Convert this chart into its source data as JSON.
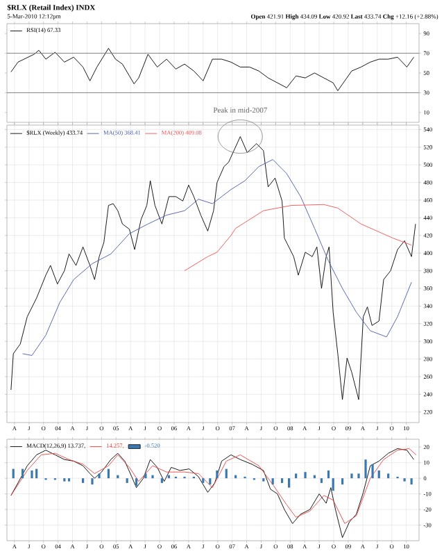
{
  "chart_data": [
    {
      "type": "line",
      "title": "$RLX (Retail Index) INDX",
      "subtitle": "5-Mar-2010 12:12pm",
      "annotations": [
        "**Open** 421.91 **High** 434.09 **Low** 420.92 **Last** 433.74 **Chg** +12.16 (+2.88%)"
      ],
      "series": [
        {
          "name": "RSI(14) 67.33",
          "color": "#000000",
          "x": [
            2003.19,
            2003.31,
            2003.59,
            2003.67,
            2003.79,
            2003.95,
            2004.11,
            2004.27,
            2004.43,
            2004.55,
            2004.67,
            2004.87,
            2004.99,
            2005.11,
            2005.23,
            2005.31,
            2005.39,
            2005.55,
            2005.71,
            2005.87,
            2006.03,
            2006.18,
            2006.34,
            2006.5,
            2006.66,
            2006.82,
            2006.98,
            2007.14,
            2007.3,
            2007.46,
            2007.62,
            2007.78,
            2007.94,
            2008.1,
            2008.26,
            2008.42,
            2008.58,
            2008.74,
            2008.82,
            2008.94,
            2009.06,
            2009.22,
            2009.38,
            2009.53,
            2009.69,
            2009.85,
            2010.01,
            2010.13
          ],
          "values": [
            51,
            61,
            69,
            73,
            64,
            71,
            61,
            66,
            56,
            42,
            56,
            75,
            64,
            59,
            47,
            39,
            45,
            69,
            56,
            64,
            54,
            59,
            52,
            42,
            64,
            64,
            61,
            56,
            56,
            52,
            45,
            40,
            35,
            47,
            45,
            50,
            45,
            40,
            32,
            42,
            52,
            56,
            61,
            64,
            64,
            66,
            56,
            66
          ]
        }
      ],
      "xlim": [
        2003.12,
        2010.22
      ],
      "ylim": [
        0,
        100
      ],
      "yticks": [
        10,
        30,
        50,
        70,
        90
      ],
      "xticks": [
        {
          "value": 2003.25,
          "label": null
        },
        {
          "value": 2003.5,
          "label": null
        },
        {
          "value": 2003.75,
          "label": null
        },
        {
          "value": 2004,
          "label": null
        },
        {
          "value": 2004.25,
          "label": null
        },
        {
          "value": 2004.5,
          "label": null
        },
        {
          "value": 2004.75,
          "label": null
        },
        {
          "value": 2005,
          "label": null
        },
        {
          "value": 2005.25,
          "label": null
        },
        {
          "value": 2005.5,
          "label": null
        },
        {
          "value": 2005.75,
          "label": null
        },
        {
          "value": 2006,
          "label": null
        },
        {
          "value": 2006.25,
          "label": null
        },
        {
          "value": 2006.5,
          "label": null
        },
        {
          "value": 2006.75,
          "label": null
        },
        {
          "value": 2007,
          "label": null
        },
        {
          "value": 2007.25,
          "label": null
        },
        {
          "value": 2007.5,
          "label": null
        },
        {
          "value": 2007.75,
          "label": null
        },
        {
          "value": 2008,
          "label": null
        },
        {
          "value": 2008.25,
          "label": null
        },
        {
          "value": 2008.5,
          "label": null
        },
        {
          "value": 2008.75,
          "label": null
        },
        {
          "value": 2009,
          "label": null
        },
        {
          "value": 2009.25,
          "label": null
        },
        {
          "value": 2009.5,
          "label": null
        },
        {
          "value": 2009.75,
          "label": null
        },
        {
          "value": 2010,
          "label": null
        }
      ],
      "tick_labels": "y",
      "grid": "x",
      "legend": "top left",
      "ref_lines": [
        {
          "axis": "y",
          "value": 70,
          "color": "#808080"
        },
        {
          "axis": "y",
          "value": 30,
          "color": "#808080"
        }
      ]
    },
    {
      "type": "line",
      "annotations": [
        "Peak in mid-2007"
      ],
      "series": [
        {
          "name": "$RLX (Weekly) 433.74",
          "color": "#000000",
          "x": [
            2003.19,
            2003.23,
            2003.35,
            2003.47,
            2003.63,
            2003.79,
            2003.87,
            2003.99,
            2004.11,
            2004.19,
            2004.31,
            2004.43,
            2004.55,
            2004.63,
            2004.71,
            2004.79,
            2004.87,
            2004.95,
            2005.03,
            2005.11,
            2005.23,
            2005.32,
            2005.43,
            2005.53,
            2005.59,
            2005.67,
            2005.79,
            2005.91,
            2006.03,
            2006.15,
            2006.25,
            2006.34,
            2006.46,
            2006.58,
            2006.68,
            2006.74,
            2006.86,
            2006.94,
            2007.14,
            2007.26,
            2007.42,
            2007.54,
            2007.62,
            2007.74,
            2007.86,
            2007.9,
            2008.06,
            2008.14,
            2008.26,
            2008.38,
            2008.46,
            2008.54,
            2008.62,
            2008.67,
            2008.74,
            2008.82,
            2008.9,
            2008.98,
            2009.06,
            2009.18,
            2009.26,
            2009.33,
            2009.41,
            2009.53,
            2009.61,
            2009.73,
            2009.85,
            2009.97,
            2010.09,
            2010.16
          ],
          "values": [
            245,
            286,
            297,
            328,
            349,
            375,
            386,
            365,
            380,
            399,
            386,
            407,
            386,
            370,
            396,
            412,
            454,
            456,
            448,
            433,
            427,
            404,
            438,
            454,
            482,
            454,
            433,
            464,
            464,
            459,
            477,
            464,
            443,
            425,
            448,
            480,
            498,
            503,
            532,
            514,
            524,
            516,
            475,
            485,
            459,
            417,
            396,
            375,
            401,
            396,
            407,
            360,
            396,
            407,
            333,
            286,
            234,
            281,
            265,
            234,
            328,
            339,
            318,
            323,
            370,
            380,
            404,
            414,
            396,
            433
          ]
        },
        {
          "name": "MA(50) 368.41",
          "color": "#4a5aa8",
          "x": [
            2003.39,
            2003.55,
            2003.79,
            2004.03,
            2004.27,
            2004.59,
            2004.91,
            2005.23,
            2005.55,
            2005.87,
            2006.18,
            2006.42,
            2006.66,
            2006.98,
            2007.22,
            2007.46,
            2007.7,
            2007.94,
            2008.18,
            2008.42,
            2008.66,
            2008.9,
            2009.14,
            2009.38,
            2009.66,
            2009.85,
            2010.09
          ],
          "values": [
            286,
            284,
            307,
            344,
            370,
            388,
            399,
            422,
            433,
            443,
            448,
            461,
            456,
            472,
            482,
            498,
            506,
            490,
            464,
            428,
            391,
            360,
            333,
            312,
            305,
            328,
            367
          ]
        },
        {
          "name": "MA(200) 409.08",
          "color": "#f05050",
          "x": [
            2006.18,
            2006.58,
            2006.74,
            2006.98,
            2007.06,
            2007.54,
            2008.02,
            2008.58,
            2008.82,
            2009.22,
            2009.77,
            2010.09
          ],
          "values": [
            380,
            396,
            401,
            420,
            428,
            448,
            454,
            455,
            451,
            433,
            417,
            409
          ]
        }
      ],
      "xlim": [
        2003.12,
        2010.22
      ],
      "ylim": [
        208,
        545
      ],
      "yticks": [
        220,
        240,
        260,
        280,
        300,
        320,
        340,
        360,
        380,
        400,
        420,
        440,
        460,
        480,
        500,
        520,
        540
      ],
      "xticks": [
        {
          "value": 2003.25,
          "label": "A"
        },
        {
          "value": 2003.5,
          "label": "J"
        },
        {
          "value": 2003.75,
          "label": "O"
        },
        {
          "value": 2004,
          "label": "04"
        },
        {
          "value": 2004.25,
          "label": "A"
        },
        {
          "value": 2004.5,
          "label": "J"
        },
        {
          "value": 2004.75,
          "label": "O"
        },
        {
          "value": 2005,
          "label": "05"
        },
        {
          "value": 2005.25,
          "label": "A"
        },
        {
          "value": 2005.5,
          "label": "J"
        },
        {
          "value": 2005.75,
          "label": "O"
        },
        {
          "value": 2006,
          "label": "06"
        },
        {
          "value": 2006.25,
          "label": "A"
        },
        {
          "value": 2006.5,
          "label": "J"
        },
        {
          "value": 2006.75,
          "label": "O"
        },
        {
          "value": 2007,
          "label": "07"
        },
        {
          "value": 2007.25,
          "label": "A"
        },
        {
          "value": 2007.5,
          "label": "J"
        },
        {
          "value": 2007.75,
          "label": "O"
        },
        {
          "value": 2008,
          "label": "08"
        },
        {
          "value": 2008.25,
          "label": "A"
        },
        {
          "value": 2008.5,
          "label": "J"
        },
        {
          "value": 2008.75,
          "label": "O"
        },
        {
          "value": 2009,
          "label": "09"
        },
        {
          "value": 2009.25,
          "label": "A"
        },
        {
          "value": 2009.5,
          "label": "J"
        },
        {
          "value": 2009.75,
          "label": "O"
        },
        {
          "value": 2010,
          "label": "10"
        }
      ],
      "grid": true,
      "legend": "top left"
    },
    {
      "type": "line",
      "series": [
        {
          "name": "MACD(12,26,9) 13.737,",
          "color": "#000000",
          "x": [
            2003.19,
            2003.31,
            2003.47,
            2003.63,
            2003.79,
            2003.95,
            2004.11,
            2004.27,
            2004.43,
            2004.55,
            2004.63,
            2004.75,
            2004.91,
            2005.03,
            2005.15,
            2005.27,
            2005.35,
            2005.47,
            2005.59,
            2005.71,
            2005.83,
            2005.95,
            2006.1,
            2006.26,
            2006.42,
            2006.58,
            2006.7,
            2006.82,
            2006.98,
            2007.14,
            2007.34,
            2007.54,
            2007.66,
            2007.78,
            2007.9,
            2008.04,
            2008.18,
            2008.34,
            2008.5,
            2008.62,
            2008.7,
            2008.78,
            2008.9,
            2009.02,
            2009.14,
            2009.26,
            2009.38,
            2009.53,
            2009.69,
            2009.85,
            2010.01,
            2010.13
          ],
          "values": [
            -11,
            -3,
            8,
            15,
            18,
            15,
            12,
            11,
            8,
            3,
            0,
            4,
            12,
            16,
            11,
            1,
            -6,
            0,
            12,
            7,
            -2,
            7,
            5,
            6,
            1,
            -9,
            -3,
            11,
            15,
            12,
            9,
            5,
            -7,
            -10,
            -20,
            -29,
            -23,
            -20,
            -10,
            -16,
            -6,
            -20,
            -38,
            -28,
            -23,
            -9,
            8,
            11,
            16,
            19,
            18,
            12
          ]
        },
        {
          "name": "14.257,",
          "color": "#f04040",
          "x": [
            2003.19,
            2003.47,
            2003.71,
            2003.95,
            2004.19,
            2004.43,
            2004.63,
            2004.87,
            2005.03,
            2005.23,
            2005.39,
            2005.63,
            2005.87,
            2006.18,
            2006.42,
            2006.66,
            2006.9,
            2007.14,
            2007.46,
            2007.7,
            2007.94,
            2008.1,
            2008.34,
            2008.58,
            2008.74,
            2008.94,
            2009.14,
            2009.38,
            2009.61,
            2009.85,
            2010.05,
            2010.17
          ],
          "values": [
            -11,
            5,
            15,
            16,
            12,
            9,
            3,
            8,
            15,
            7,
            -2,
            8,
            4,
            4,
            3,
            -6,
            11,
            15,
            8,
            -4,
            -17,
            -25,
            -21,
            -11,
            -14,
            -29,
            -24,
            0,
            12,
            18,
            19,
            15
          ]
        },
        {
          "name": "-0.520",
          "type": "bar",
          "color": "#3a78b0",
          "x": [
            2003.23,
            2003.39,
            2003.55,
            2003.63,
            2003.79,
            2003.95,
            2004.11,
            2004.19,
            2004.43,
            2004.59,
            2004.71,
            2004.87,
            2005.03,
            2005.19,
            2005.35,
            2005.51,
            2005.63,
            2005.79,
            2005.91,
            2006.03,
            2006.18,
            2006.34,
            2006.5,
            2006.62,
            2006.74,
            2006.9,
            2007.06,
            2007.22,
            2007.38,
            2007.54,
            2007.7,
            2007.86,
            2007.98,
            2008.1,
            2008.26,
            2008.42,
            2008.54,
            2008.66,
            2008.74,
            2008.9,
            2009.06,
            2009.18,
            2009.3,
            2009.42,
            2009.53,
            2009.69,
            2009.85,
            2009.97,
            2010.09
          ],
          "values": [
            6,
            6,
            5,
            6,
            -1,
            -1,
            -2,
            -2,
            -3,
            -4,
            3,
            6,
            2,
            -3,
            -5,
            3,
            2,
            -3,
            2,
            1,
            1,
            1,
            -3,
            -4,
            5,
            6,
            2,
            1,
            -1,
            -2,
            -4,
            -3,
            -6,
            3,
            4,
            2,
            -3,
            5,
            -8,
            -4,
            3,
            3,
            12,
            9,
            5,
            3,
            1,
            -2,
            -4
          ]
        }
      ],
      "xlim": [
        2003.12,
        2010.22
      ],
      "ylim": [
        -40,
        25
      ],
      "yticks": [
        -30,
        -20,
        -10,
        0,
        10,
        20
      ],
      "xticks": [
        {
          "value": 2003.25,
          "label": "A"
        },
        {
          "value": 2003.5,
          "label": "J"
        },
        {
          "value": 2003.75,
          "label": "O"
        },
        {
          "value": 2004,
          "label": "04"
        },
        {
          "value": 2004.25,
          "label": "A"
        },
        {
          "value": 2004.5,
          "label": "J"
        },
        {
          "value": 2004.75,
          "label": "O"
        },
        {
          "value": 2005,
          "label": "05"
        },
        {
          "value": 2005.25,
          "label": "A"
        },
        {
          "value": 2005.5,
          "label": "J"
        },
        {
          "value": 2005.75,
          "label": "O"
        },
        {
          "value": 2006,
          "label": "06"
        },
        {
          "value": 2006.25,
          "label": "A"
        },
        {
          "value": 2006.5,
          "label": "J"
        },
        {
          "value": 2006.75,
          "label": "O"
        },
        {
          "value": 2007,
          "label": "07"
        },
        {
          "value": 2007.25,
          "label": "A"
        },
        {
          "value": 2007.5,
          "label": "J"
        },
        {
          "value": 2007.75,
          "label": "O"
        },
        {
          "value": 2008,
          "label": "08"
        },
        {
          "value": 2008.25,
          "label": "A"
        },
        {
          "value": 2008.5,
          "label": "J"
        },
        {
          "value": 2008.75,
          "label": "O"
        },
        {
          "value": 2009,
          "label": "09"
        },
        {
          "value": 2009.25,
          "label": "A"
        },
        {
          "value": 2009.5,
          "label": "J"
        },
        {
          "value": 2009.75,
          "label": "O"
        },
        {
          "value": 2010,
          "label": "10"
        }
      ],
      "grid": true,
      "legend": "top left"
    }
  ]
}
